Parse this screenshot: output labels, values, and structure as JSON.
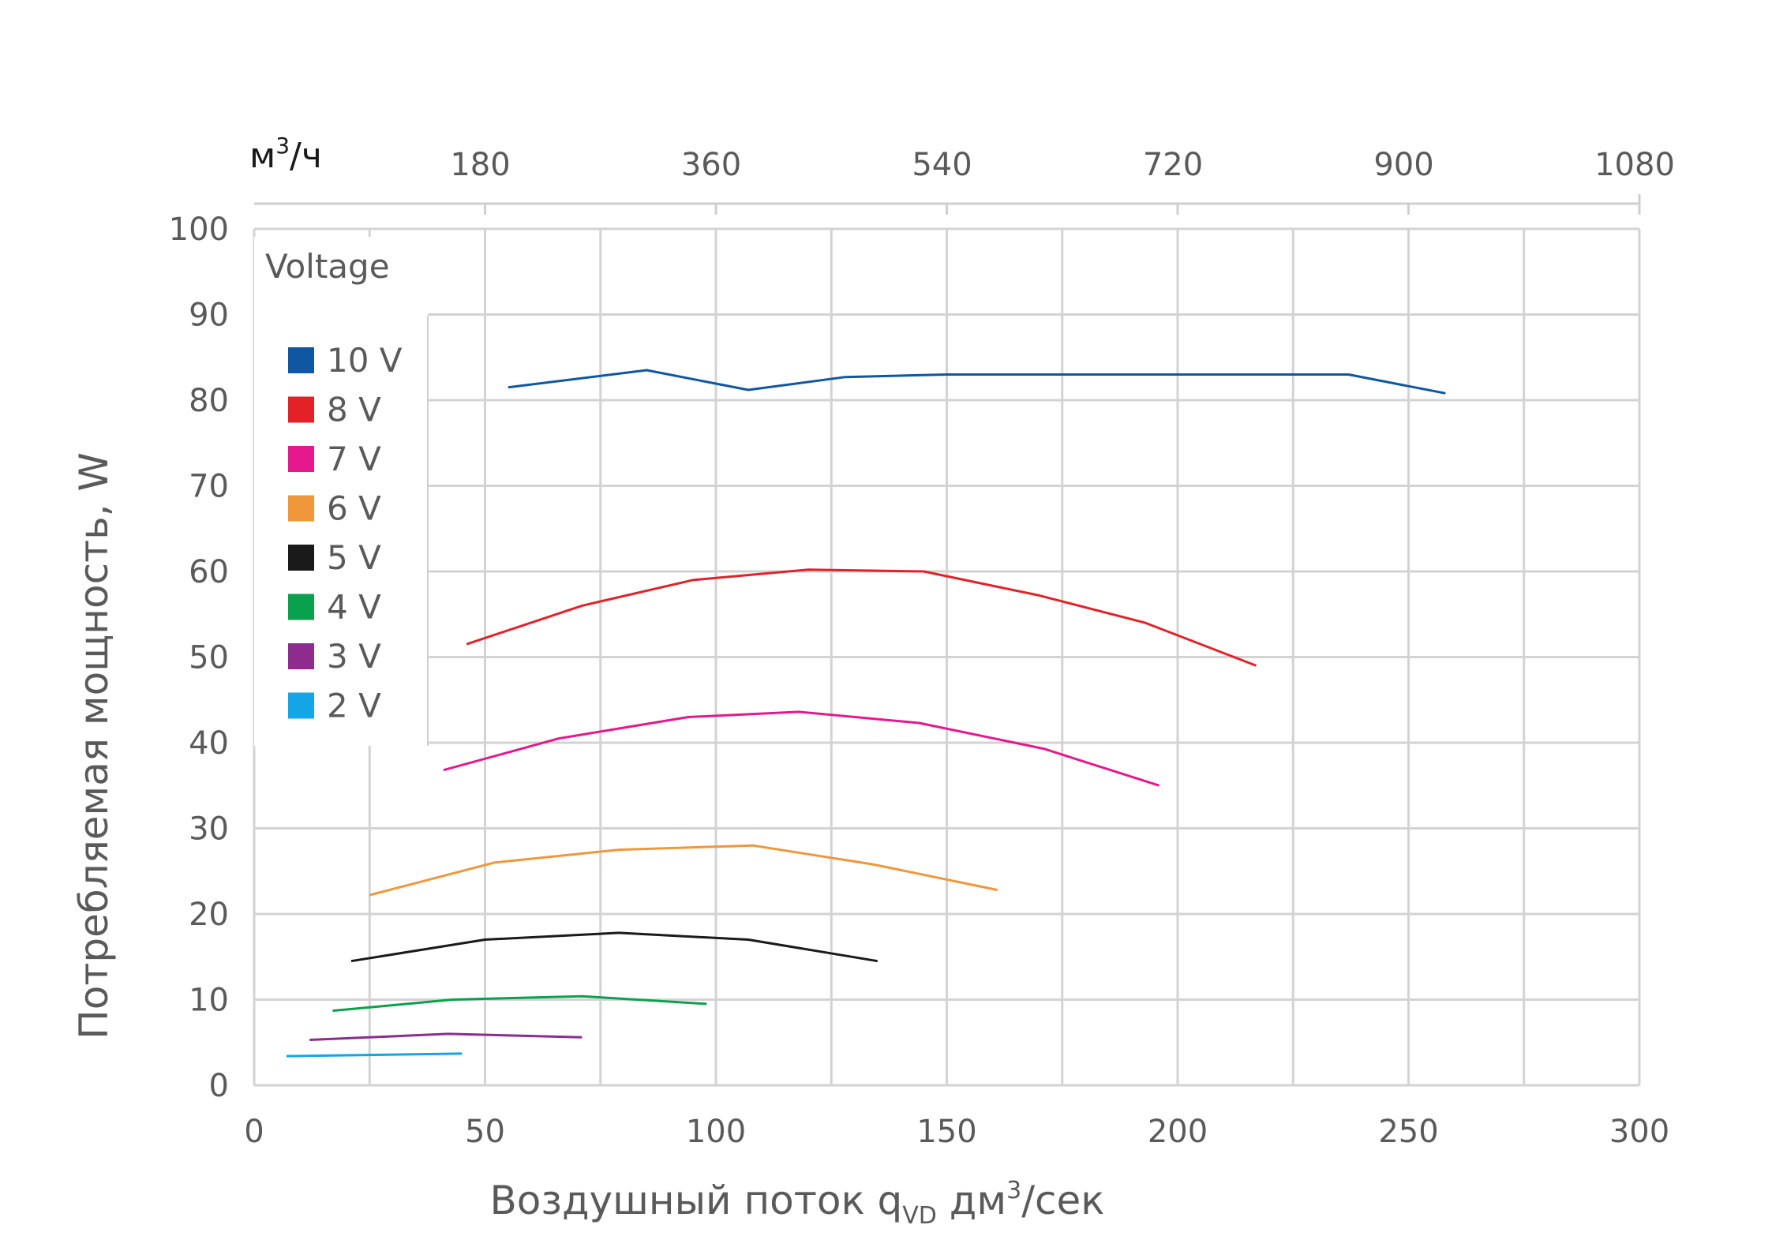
{
  "chart_data": {
    "type": "line",
    "xlabel": {
      "main": "Воздушный поток q",
      "sub": "VD",
      "unit_pre": " дм",
      "unit_sup": "3",
      "unit_post": "/сек"
    },
    "ylabel": "Потребляемая мощность, W",
    "xlim": [
      0,
      300
    ],
    "ylim": [
      0,
      100
    ],
    "x_ticks": [
      "0",
      "50",
      "100",
      "150",
      "200",
      "250",
      "300"
    ],
    "y_ticks": [
      "0",
      "10",
      "20",
      "30",
      "40",
      "50",
      "60",
      "70",
      "80",
      "90",
      "100"
    ],
    "grid": true,
    "secondary_x_axis": {
      "label_pre": "м",
      "label_sup": "3",
      "label_post": "/ч",
      "ticks": [
        "180",
        "360",
        "540",
        "720",
        "900",
        "1080"
      ],
      "tick_values_primary": [
        50,
        100,
        150,
        200,
        250,
        300
      ]
    },
    "legend": {
      "title": "Voltage",
      "position": "top-left"
    },
    "series": [
      {
        "name": "10 V",
        "color": "#0f57a3",
        "x": [
          55,
          85,
          107,
          128,
          150,
          175,
          200,
          237,
          258
        ],
        "y": [
          81.5,
          83.5,
          81.2,
          82.7,
          83,
          83,
          83,
          83,
          80.8
        ]
      },
      {
        "name": "8 V",
        "color": "#e32228",
        "x": [
          46,
          71,
          95,
          120,
          145,
          170,
          193,
          217
        ],
        "y": [
          51.5,
          56,
          59,
          60.2,
          60,
          57.2,
          54,
          49
        ]
      },
      {
        "name": "7 V",
        "color": "#e6188d",
        "x": [
          41,
          66,
          94,
          118,
          144,
          171,
          196
        ],
        "y": [
          36.8,
          40.5,
          43,
          43.6,
          42.3,
          39.3,
          35
        ]
      },
      {
        "name": "6 V",
        "color": "#f0973b",
        "x": [
          25,
          52,
          79,
          108,
          134,
          161
        ],
        "y": [
          22.2,
          26,
          27.5,
          28,
          25.8,
          22.8
        ]
      },
      {
        "name": "5 V",
        "color": "#1a1a1a",
        "x": [
          21,
          50,
          79,
          107,
          135
        ],
        "y": [
          14.5,
          17,
          17.8,
          17,
          14.5
        ]
      },
      {
        "name": "4 V",
        "color": "#0aa14e",
        "x": [
          17,
          43,
          71,
          98
        ],
        "y": [
          8.7,
          10,
          10.4,
          9.5
        ]
      },
      {
        "name": "3 V",
        "color": "#8e2c8e",
        "x": [
          12,
          42,
          71
        ],
        "y": [
          5.3,
          6,
          5.6
        ]
      },
      {
        "name": "2 V",
        "color": "#13a5e6",
        "x": [
          7,
          45
        ],
        "y": [
          3.4,
          3.7
        ]
      }
    ]
  }
}
